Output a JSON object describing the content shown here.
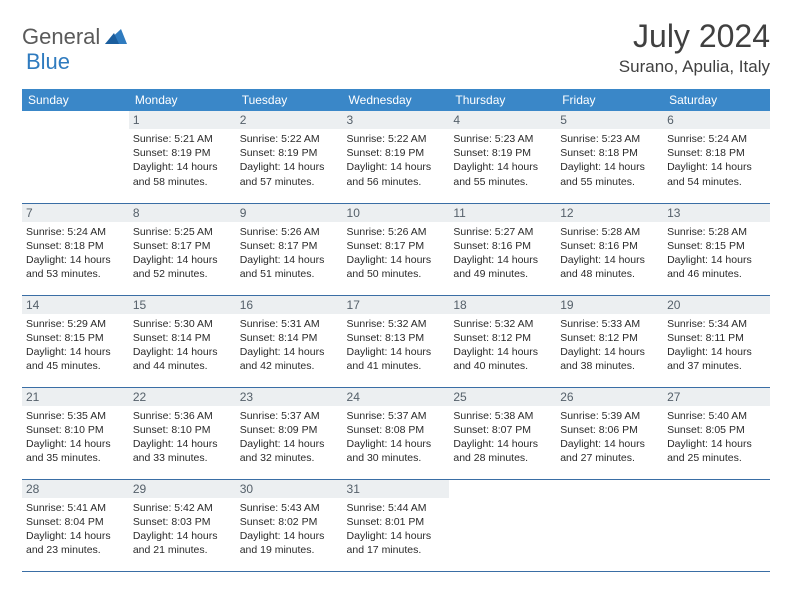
{
  "logo": {
    "word1": "General",
    "word2": "Blue"
  },
  "title": "July 2024",
  "location": "Surano, Apulia, Italy",
  "colors": {
    "header_bg": "#3a87c8",
    "header_fg": "#ffffff",
    "daynum_bg": "#eceff1",
    "daynum_fg": "#55606a",
    "rule": "#3a6ea5",
    "text": "#2a2a2a",
    "title": "#404040",
    "logo_gray": "#5a5a5a",
    "logo_blue": "#2f7bbf"
  },
  "weekdays": [
    "Sunday",
    "Monday",
    "Tuesday",
    "Wednesday",
    "Thursday",
    "Friday",
    "Saturday"
  ],
  "first_weekday_index": 1,
  "days_in_month": 31,
  "days": {
    "1": {
      "sunrise": "5:21 AM",
      "sunset": "8:19 PM",
      "daylight": "14 hours and 58 minutes."
    },
    "2": {
      "sunrise": "5:22 AM",
      "sunset": "8:19 PM",
      "daylight": "14 hours and 57 minutes."
    },
    "3": {
      "sunrise": "5:22 AM",
      "sunset": "8:19 PM",
      "daylight": "14 hours and 56 minutes."
    },
    "4": {
      "sunrise": "5:23 AM",
      "sunset": "8:19 PM",
      "daylight": "14 hours and 55 minutes."
    },
    "5": {
      "sunrise": "5:23 AM",
      "sunset": "8:18 PM",
      "daylight": "14 hours and 55 minutes."
    },
    "6": {
      "sunrise": "5:24 AM",
      "sunset": "8:18 PM",
      "daylight": "14 hours and 54 minutes."
    },
    "7": {
      "sunrise": "5:24 AM",
      "sunset": "8:18 PM",
      "daylight": "14 hours and 53 minutes."
    },
    "8": {
      "sunrise": "5:25 AM",
      "sunset": "8:17 PM",
      "daylight": "14 hours and 52 minutes."
    },
    "9": {
      "sunrise": "5:26 AM",
      "sunset": "8:17 PM",
      "daylight": "14 hours and 51 minutes."
    },
    "10": {
      "sunrise": "5:26 AM",
      "sunset": "8:17 PM",
      "daylight": "14 hours and 50 minutes."
    },
    "11": {
      "sunrise": "5:27 AM",
      "sunset": "8:16 PM",
      "daylight": "14 hours and 49 minutes."
    },
    "12": {
      "sunrise": "5:28 AM",
      "sunset": "8:16 PM",
      "daylight": "14 hours and 48 minutes."
    },
    "13": {
      "sunrise": "5:28 AM",
      "sunset": "8:15 PM",
      "daylight": "14 hours and 46 minutes."
    },
    "14": {
      "sunrise": "5:29 AM",
      "sunset": "8:15 PM",
      "daylight": "14 hours and 45 minutes."
    },
    "15": {
      "sunrise": "5:30 AM",
      "sunset": "8:14 PM",
      "daylight": "14 hours and 44 minutes."
    },
    "16": {
      "sunrise": "5:31 AM",
      "sunset": "8:14 PM",
      "daylight": "14 hours and 42 minutes."
    },
    "17": {
      "sunrise": "5:32 AM",
      "sunset": "8:13 PM",
      "daylight": "14 hours and 41 minutes."
    },
    "18": {
      "sunrise": "5:32 AM",
      "sunset": "8:12 PM",
      "daylight": "14 hours and 40 minutes."
    },
    "19": {
      "sunrise": "5:33 AM",
      "sunset": "8:12 PM",
      "daylight": "14 hours and 38 minutes."
    },
    "20": {
      "sunrise": "5:34 AM",
      "sunset": "8:11 PM",
      "daylight": "14 hours and 37 minutes."
    },
    "21": {
      "sunrise": "5:35 AM",
      "sunset": "8:10 PM",
      "daylight": "14 hours and 35 minutes."
    },
    "22": {
      "sunrise": "5:36 AM",
      "sunset": "8:10 PM",
      "daylight": "14 hours and 33 minutes."
    },
    "23": {
      "sunrise": "5:37 AM",
      "sunset": "8:09 PM",
      "daylight": "14 hours and 32 minutes."
    },
    "24": {
      "sunrise": "5:37 AM",
      "sunset": "8:08 PM",
      "daylight": "14 hours and 30 minutes."
    },
    "25": {
      "sunrise": "5:38 AM",
      "sunset": "8:07 PM",
      "daylight": "14 hours and 28 minutes."
    },
    "26": {
      "sunrise": "5:39 AM",
      "sunset": "8:06 PM",
      "daylight": "14 hours and 27 minutes."
    },
    "27": {
      "sunrise": "5:40 AM",
      "sunset": "8:05 PM",
      "daylight": "14 hours and 25 minutes."
    },
    "28": {
      "sunrise": "5:41 AM",
      "sunset": "8:04 PM",
      "daylight": "14 hours and 23 minutes."
    },
    "29": {
      "sunrise": "5:42 AM",
      "sunset": "8:03 PM",
      "daylight": "14 hours and 21 minutes."
    },
    "30": {
      "sunrise": "5:43 AM",
      "sunset": "8:02 PM",
      "daylight": "14 hours and 19 minutes."
    },
    "31": {
      "sunrise": "5:44 AM",
      "sunset": "8:01 PM",
      "daylight": "14 hours and 17 minutes."
    }
  }
}
